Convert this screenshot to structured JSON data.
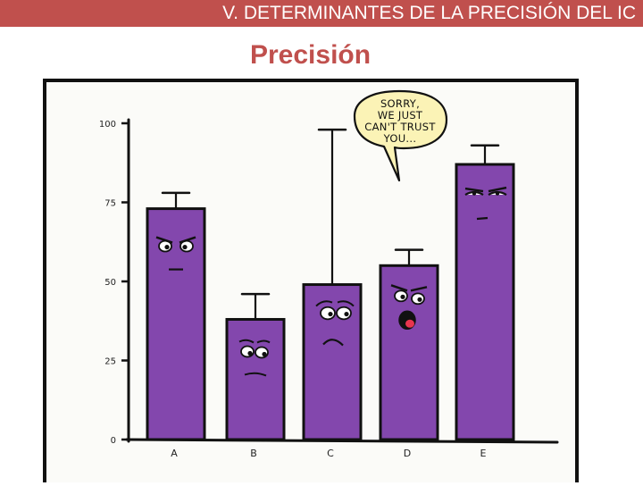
{
  "header": {
    "title": "V. DETERMINANTES DE LA PRECISIÓN DEL IC"
  },
  "slide": {
    "title": "Precisión"
  },
  "bubble": {
    "lines": [
      "SORRY,",
      "WE JUST",
      "CAN'T TRUST",
      "YOU..."
    ]
  },
  "colors": {
    "header_bg": "#c0504d",
    "title_color": "#c0504d",
    "bar_fill": "#8347ad",
    "ink": "#111111"
  },
  "chart_data": {
    "type": "bar",
    "categories": [
      "A",
      "B",
      "C",
      "D",
      "E"
    ],
    "values": [
      73,
      38,
      49,
      55,
      87
    ],
    "error_upper": [
      78,
      46,
      98,
      60,
      93
    ],
    "ylim": [
      0,
      100
    ],
    "yticks": [
      0,
      25,
      50,
      75,
      100
    ],
    "ytick_labels": [
      "0",
      "25",
      "50",
      "75",
      "100"
    ],
    "title": "",
    "xlabel": "",
    "ylabel": "",
    "expressions": [
      "frown",
      "worried",
      "sad",
      "shocked",
      "suspicious"
    ],
    "grid": false
  }
}
